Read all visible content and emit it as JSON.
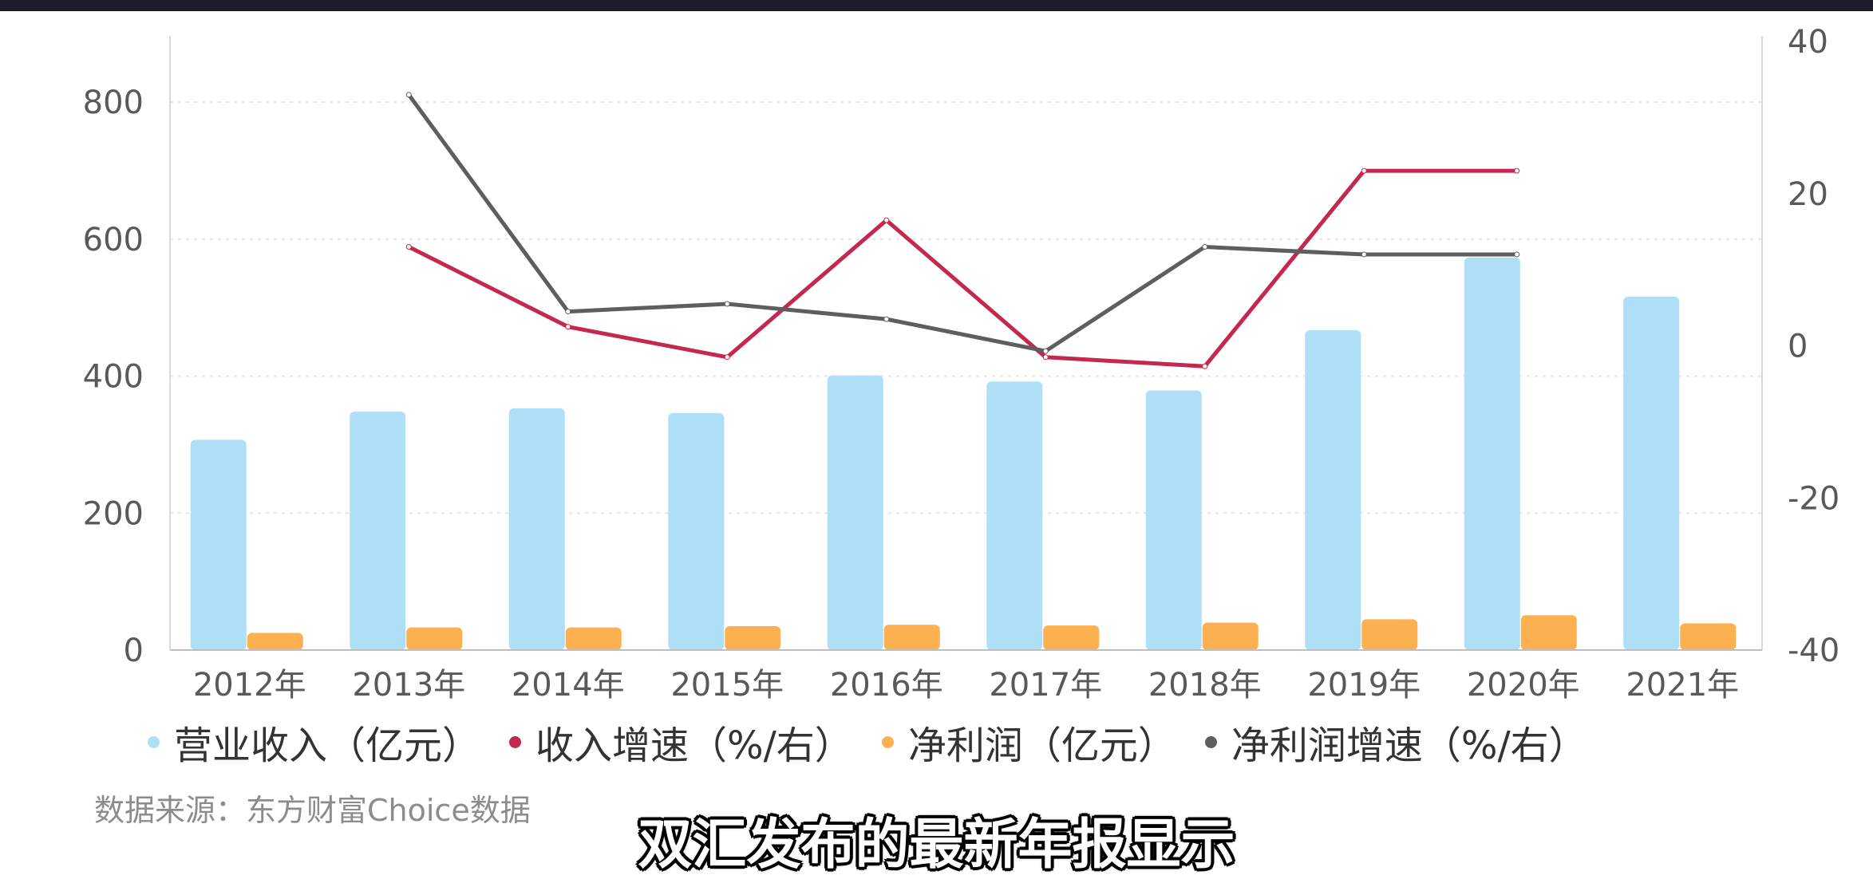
{
  "chart_data": {
    "type": "bar",
    "categories": [
      "2012年",
      "2013年",
      "2014年",
      "2015年",
      "2016年",
      "2017年",
      "2018年",
      "2019年",
      "2020年",
      "2021年"
    ],
    "series": [
      {
        "name": "营业收入（亿元）",
        "type": "bar",
        "axis": "left",
        "color": "#aedff6",
        "values": [
          307,
          348,
          353,
          346,
          401,
          392,
          379,
          467,
          573,
          516
        ]
      },
      {
        "name": "收入增速（%/右）",
        "type": "line",
        "axis": "right",
        "color": "#c4284f",
        "values": [
          null,
          13,
          2.5,
          -1.5,
          16.5,
          -1.5,
          -2.7,
          23,
          23,
          null
        ]
      },
      {
        "name": "净利润（亿元）",
        "type": "bar",
        "axis": "left",
        "color": "#fcb04f",
        "values": [
          25,
          33,
          33,
          35,
          37,
          36,
          40,
          45,
          51,
          39
        ]
      },
      {
        "name": "净利润增速（%/右）",
        "type": "line",
        "axis": "right",
        "color": "#5e5e5e",
        "values": [
          null,
          33,
          4.5,
          5.5,
          3.5,
          -0.7,
          13,
          12,
          12,
          null
        ]
      }
    ],
    "y_left": {
      "min": 0,
      "max": 800,
      "ticks": [
        0,
        200,
        400,
        600,
        800
      ]
    },
    "y_right": {
      "min": -40,
      "max": 40,
      "ticks": [
        -40,
        -20,
        0,
        20,
        40
      ]
    },
    "grid": "horizontal-dotted",
    "legend_position": "bottom",
    "legend": [
      "营业收入（亿元）",
      "收入增速（%/右）",
      "净利润（亿元）",
      "净利润增速（%/右）"
    ],
    "source": "数据来源：东方财富Choice数据"
  },
  "subtitle_caption": "双汇发布的最新年报显示"
}
